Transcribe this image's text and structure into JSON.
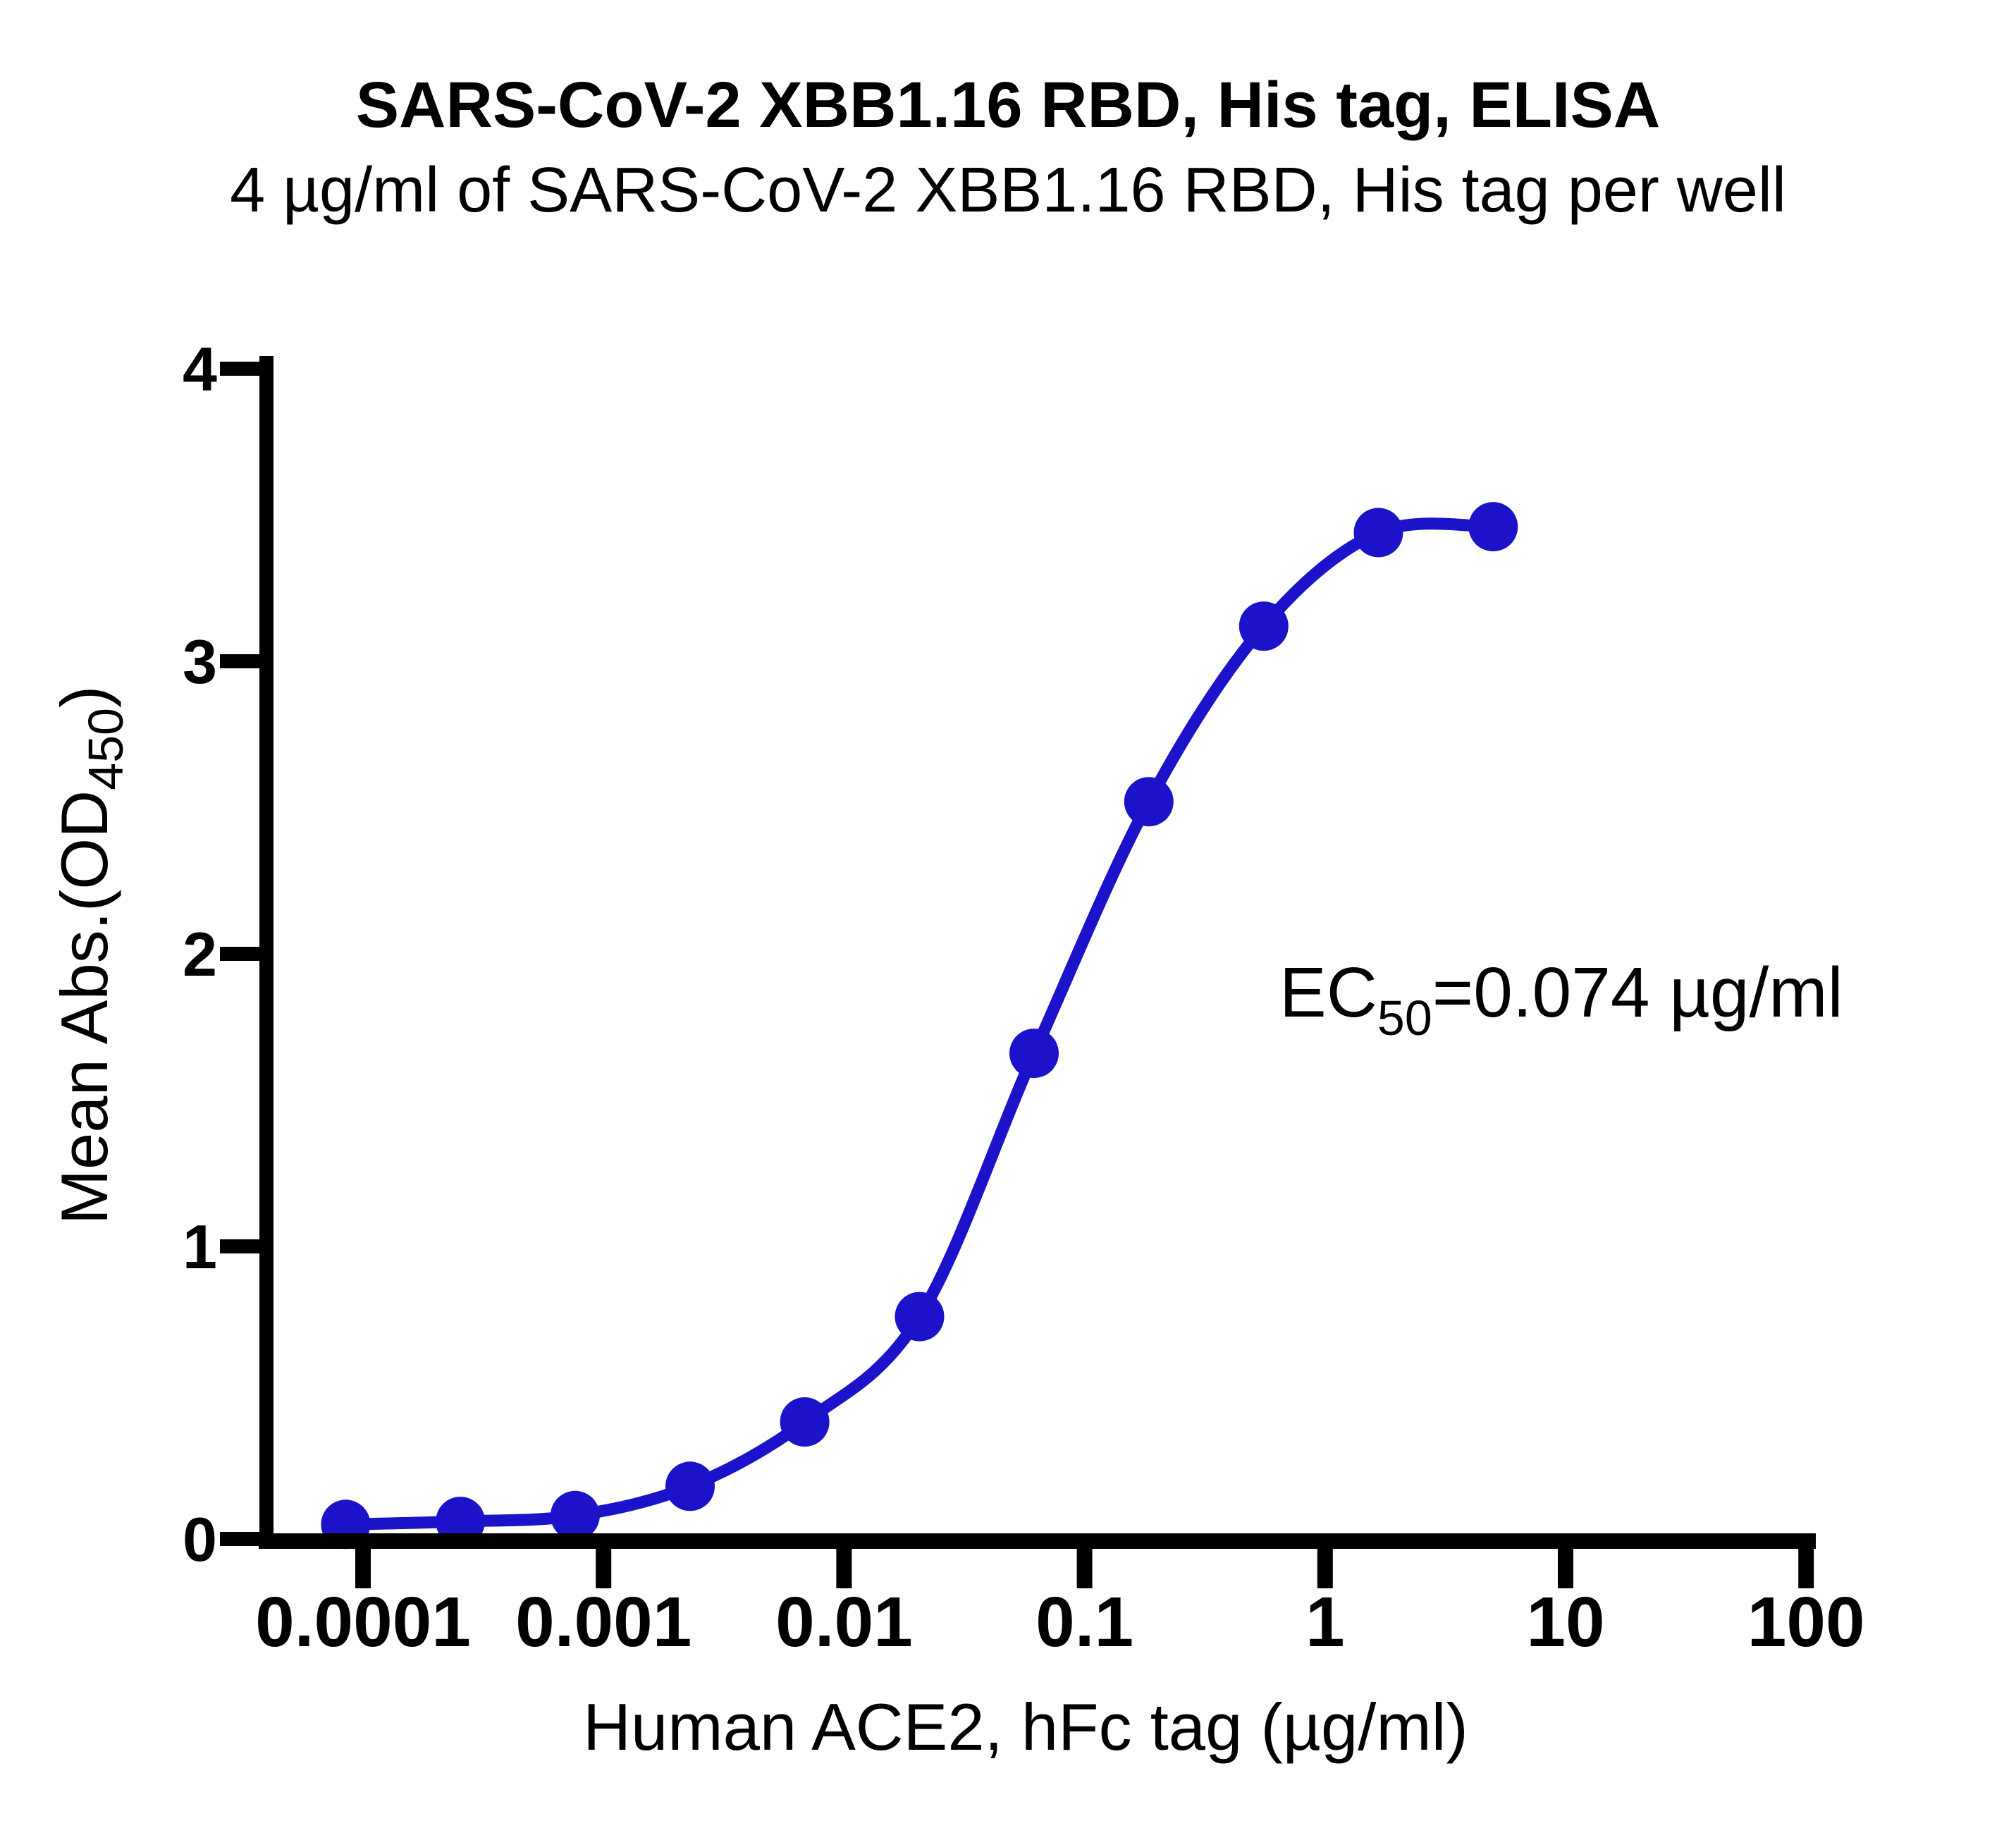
{
  "figure": {
    "title": "SARS-CoV-2 XBB1.16 RBD, His tag, ELISA",
    "subtitle": "4 µg/ml of SARS-CoV-2 XBB1.16 RBD, His tag per well"
  },
  "y_axis": {
    "title_pre": "Mean Abs.(OD",
    "title_sub": "450",
    "title_post": ")"
  },
  "x_axis": {
    "title": "Human ACE2, hFc tag (µg/ml)"
  },
  "annotation": {
    "pre": "EC",
    "sub": "50",
    "post": "=0.074 µg/ml"
  },
  "chart_data": {
    "type": "scatter",
    "title": "SARS-CoV-2 XBB1.16 RBD, His tag, ELISA",
    "subtitle": "4 µg/ml of SARS-CoV-2 XBB1.16 RBD, His tag per well",
    "xlabel": "Human ACE2, hFc tag (µg/ml)",
    "ylabel": "Mean Abs.(OD450)",
    "x_scale": "log10",
    "x": [
      8.47e-05,
      0.000254,
      0.000762,
      0.00229,
      0.00686,
      0.0206,
      0.0617,
      0.185,
      0.556,
      1.667,
      5
    ],
    "y": [
      0.05,
      0.06,
      0.08,
      0.18,
      0.4,
      0.76,
      1.66,
      2.52,
      3.12,
      3.44,
      3.46
    ],
    "x_ticks": [
      0.0001,
      0.001,
      0.01,
      0.1,
      1,
      10,
      100
    ],
    "x_tick_labels": [
      "0.0001",
      "0.001",
      "0.01",
      "0.1",
      "1",
      "10",
      "100"
    ],
    "y_ticks": [
      0,
      1,
      2,
      3,
      4
    ],
    "y_tick_labels": [
      "0",
      "1",
      "2",
      "3",
      "4"
    ],
    "xlim": [
      0.0001,
      100
    ],
    "ylim": [
      0,
      4
    ],
    "ec50_ugml": 0.074,
    "annotation_text": "EC50=0.074 µg/ml",
    "series_color": "#1B12C9",
    "axis_color": "#000000",
    "grid": "off",
    "legend": "none"
  }
}
